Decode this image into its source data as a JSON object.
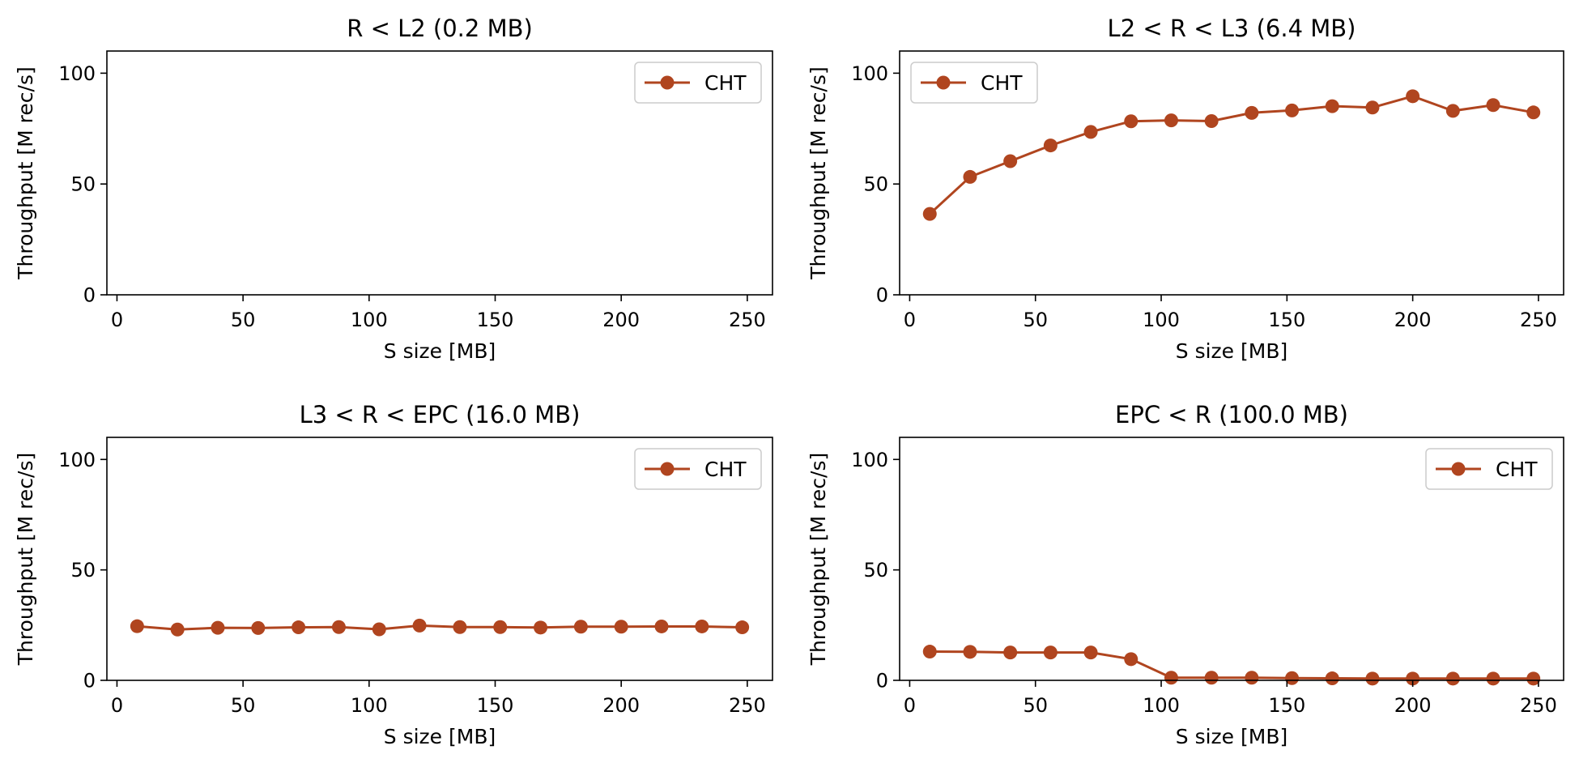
{
  "chart_data": [
    {
      "type": "line",
      "title": "R < L2 (0.2 MB)",
      "xlabel": "S size [MB]",
      "ylabel": "Throughput [M rec/s]",
      "xlim": [
        -4,
        260
      ],
      "ylim": [
        0,
        110
      ],
      "xticks": [
        0,
        50,
        100,
        150,
        200,
        250
      ],
      "yticks": [
        0,
        50,
        100
      ],
      "legend_position": "top-right",
      "grid": false,
      "series": [
        {
          "name": "CHT",
          "color": "#b0451f",
          "marker": "circle",
          "x": [],
          "y": []
        }
      ]
    },
    {
      "type": "line",
      "title": "L2 < R < L3 (6.4 MB)",
      "xlabel": "S size [MB]",
      "ylabel": "Throughput [M rec/s]",
      "xlim": [
        -4,
        260
      ],
      "ylim": [
        0,
        110
      ],
      "xticks": [
        0,
        50,
        100,
        150,
        200,
        250
      ],
      "yticks": [
        0,
        50,
        100
      ],
      "legend_position": "top-left",
      "grid": false,
      "series": [
        {
          "name": "CHT",
          "color": "#b0451f",
          "marker": "circle",
          "x": [
            8,
            24,
            40,
            56,
            72,
            88,
            104,
            120,
            136,
            152,
            168,
            184,
            200,
            216,
            232,
            248
          ],
          "y": [
            36.5,
            53.2,
            60.3,
            67.4,
            73.5,
            78.3,
            78.7,
            78.4,
            82.1,
            83.2,
            85.1,
            84.5,
            89.6,
            83.0,
            85.6,
            82.3
          ]
        }
      ]
    },
    {
      "type": "line",
      "title": "L3 < R < EPC (16.0 MB)",
      "xlabel": "S size [MB]",
      "ylabel": "Throughput [M rec/s]",
      "xlim": [
        -4,
        260
      ],
      "ylim": [
        0,
        110
      ],
      "xticks": [
        0,
        50,
        100,
        150,
        200,
        250
      ],
      "yticks": [
        0,
        50,
        100
      ],
      "legend_position": "top-right",
      "grid": false,
      "series": [
        {
          "name": "CHT",
          "color": "#b0451f",
          "marker": "circle",
          "x": [
            8,
            24,
            40,
            56,
            72,
            88,
            104,
            120,
            136,
            152,
            168,
            184,
            200,
            216,
            232,
            248
          ],
          "y": [
            24.5,
            23.0,
            23.8,
            23.7,
            24.0,
            24.1,
            23.1,
            24.8,
            24.1,
            24.1,
            23.9,
            24.3,
            24.3,
            24.4,
            24.4,
            24.0
          ]
        }
      ]
    },
    {
      "type": "line",
      "title": "EPC < R (100.0 MB)",
      "xlabel": "S size [MB]",
      "ylabel": "Throughput [M rec/s]",
      "xlim": [
        -4,
        260
      ],
      "ylim": [
        0,
        110
      ],
      "xticks": [
        0,
        50,
        100,
        150,
        200,
        250
      ],
      "yticks": [
        0,
        50,
        100
      ],
      "legend_position": "top-right",
      "grid": false,
      "series": [
        {
          "name": "CHT",
          "color": "#b0451f",
          "marker": "circle",
          "x": [
            8,
            24,
            40,
            56,
            72,
            88,
            104,
            120,
            136,
            152,
            168,
            184,
            200,
            216,
            232,
            248
          ],
          "y": [
            13.0,
            12.9,
            12.6,
            12.6,
            12.6,
            9.6,
            1.2,
            1.2,
            1.2,
            1.0,
            0.9,
            0.8,
            0.8,
            0.8,
            0.8,
            0.8
          ]
        }
      ]
    }
  ]
}
